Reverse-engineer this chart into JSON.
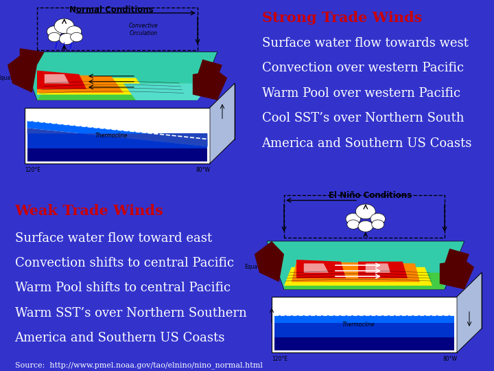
{
  "bg_color": "#3333cc",
  "title_top_right": "Strong Trade Winds",
  "title_color": "#cc0000",
  "lines_top_right": [
    "Surface water flow towards west",
    "Convection over western Pacific",
    "Warm Pool over western Pacific",
    "Cool SST’s over Northern South",
    "America and Southern US Coasts"
  ],
  "title_bottom_left": "Weak Trade Winds",
  "lines_bottom_left": [
    "Surface water flow toward east",
    "Convection shifts to central Pacific",
    "Warm Pool shifts to central Pacific",
    "Warm SST’s over Northern Southern",
    "America and Southern US Coasts"
  ],
  "source_text": "Source:  http://www.pmel.noaa.gov/tao/elnino/nino_normal.html",
  "text_color": "#ffffff",
  "font_size_title": 15,
  "font_size_body": 13,
  "font_size_source": 8,
  "diagram_top_left_title": "Normal Conditions",
  "diagram_bottom_right_title": "El Niño Conditions",
  "diagram_bg": "#d8d8d8"
}
